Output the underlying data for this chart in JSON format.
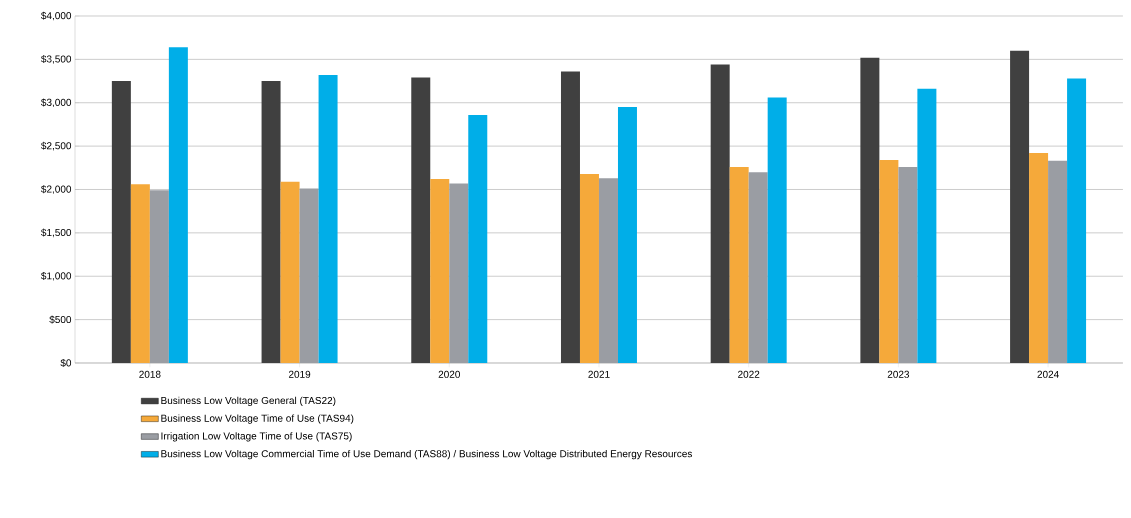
{
  "chart_data": {
    "type": "bar",
    "categories": [
      "2018",
      "2019",
      "2020",
      "2021",
      "2022",
      "2023",
      "2024"
    ],
    "series": [
      {
        "name": "Business Low Voltage General (TAS22)",
        "color": "#404040",
        "values": [
          3250,
          3250,
          3290,
          3360,
          3440,
          3520,
          3600
        ]
      },
      {
        "name": "Business Low Voltage Time of Use (TAS94)",
        "color": "#f5a93a",
        "values": [
          2060,
          2090,
          2120,
          2180,
          2260,
          2340,
          2420
        ]
      },
      {
        "name": "Irrigation Low Voltage Time of Use (TAS75)",
        "color": "#9a9da3",
        "values": [
          1990,
          2010,
          2070,
          2130,
          2200,
          2260,
          2330
        ]
      },
      {
        "name": "Business Low Voltage Commercial Time of Use Demand (TAS88) / Business Low Voltage Distributed Energy Resources",
        "color": "#00aee8",
        "values": [
          3640,
          3320,
          2860,
          2950,
          3060,
          3160,
          3280
        ]
      }
    ],
    "ylim": [
      0,
      4000
    ],
    "yticks": [
      {
        "value": 0,
        "label": "$0"
      },
      {
        "value": 500,
        "label": "$500"
      },
      {
        "value": 1000,
        "label": "$1,000"
      },
      {
        "value": 1500,
        "label": "$1,500"
      },
      {
        "value": 2000,
        "label": "$2,000"
      },
      {
        "value": 2500,
        "label": "$2,500"
      },
      {
        "value": 3000,
        "label": "$3,000"
      },
      {
        "value": 3500,
        "label": "$3,500"
      },
      {
        "value": 4000,
        "label": "$4,000"
      }
    ],
    "grid": "y",
    "legend": "bottom"
  }
}
